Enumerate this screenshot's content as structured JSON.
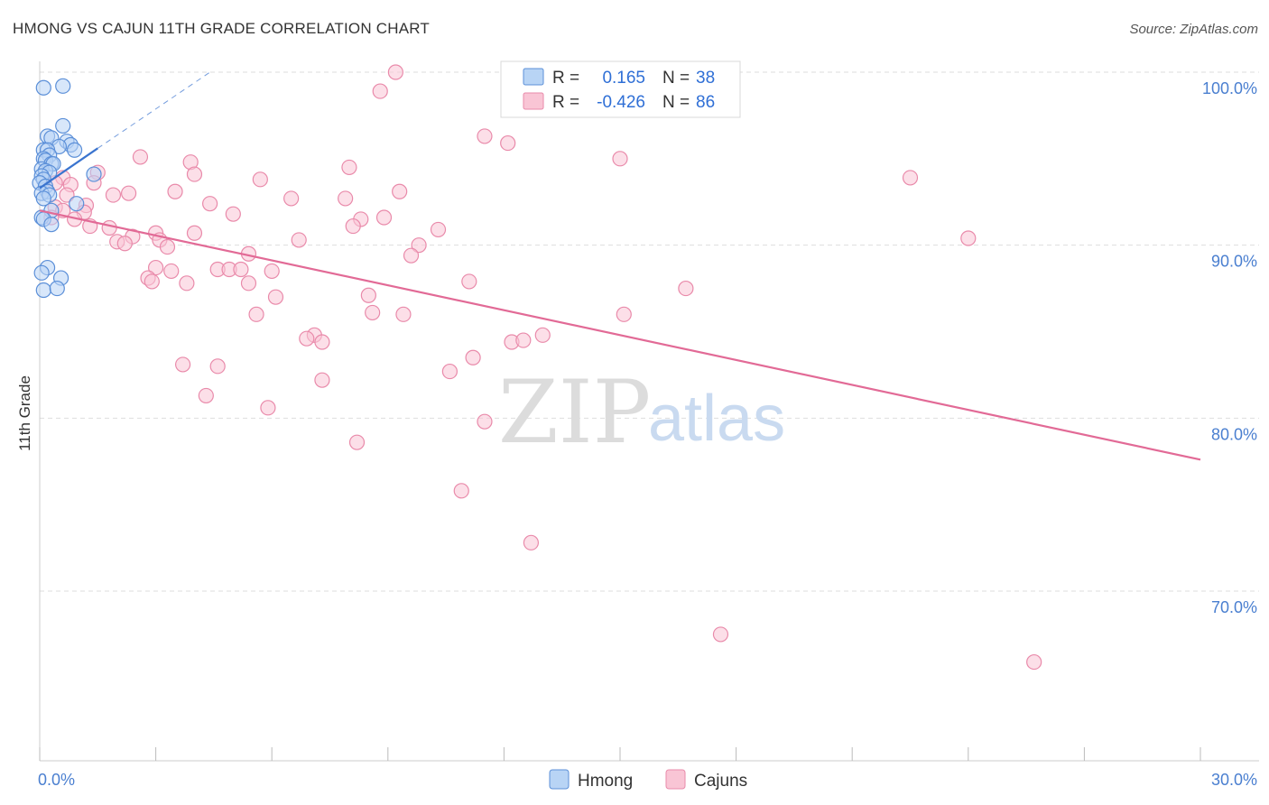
{
  "title": "HMONG VS CAJUN 11TH GRADE CORRELATION CHART",
  "source": "Source: ZipAtlas.com",
  "watermark": {
    "part1": "ZIP",
    "part2": "atlas"
  },
  "colors": {
    "hmong_fill": "#b8d4f5",
    "hmong_stroke": "#5b8fd8",
    "hmong_line": "#3a74cf",
    "cajun_fill": "#f9c5d5",
    "cajun_stroke": "#e98aaa",
    "cajun_line": "#e26a96",
    "tick_label": "#4a7fd0",
    "grid": "#dddddd"
  },
  "legend_box": {
    "rows": [
      {
        "r_label": "R =",
        "r_value": "0.165",
        "n_label": "N =",
        "n_value": "38",
        "series": "hmong"
      },
      {
        "r_label": "R =",
        "r_value": "-0.426",
        "n_label": "N =",
        "n_value": "86",
        "series": "cajun"
      }
    ]
  },
  "chart_data": {
    "type": "scatter",
    "title": "HMONG VS CAJUN 11TH GRADE CORRELATION CHART",
    "xlabel": "",
    "ylabel": "11th Grade",
    "xlim": [
      0.0,
      30.0
    ],
    "ylim": [
      60.5,
      101.0
    ],
    "x_tick_labels": [
      {
        "value": 0.0,
        "label": "0.0%"
      },
      {
        "value": 30.0,
        "label": "30.0%"
      }
    ],
    "x_minor_ticks": [
      3,
      6,
      9,
      12,
      15,
      18,
      21,
      24,
      27
    ],
    "y_ticks": [
      {
        "value": 100.0,
        "label": "100.0%"
      },
      {
        "value": 90.0,
        "label": "90.0%"
      },
      {
        "value": 80.0,
        "label": "80.0%"
      },
      {
        "value": 70.0,
        "label": "70.0%"
      }
    ],
    "grid": true,
    "legend_position": "bottom-center",
    "series": [
      {
        "name": "Hmong",
        "key": "hmong",
        "r": 0.165,
        "n": 38,
        "trend": {
          "x0": 0.0,
          "y0": 93.3,
          "x1": 1.5,
          "y1": 95.6,
          "dashed_to_x": 4.4,
          "dashed_to_y": 100.0
        },
        "points": [
          [
            0.1,
            99.1
          ],
          [
            0.6,
            99.2
          ],
          [
            0.6,
            96.9
          ],
          [
            0.2,
            96.3
          ],
          [
            0.3,
            96.2
          ],
          [
            0.7,
            96.0
          ],
          [
            0.8,
            95.8
          ],
          [
            0.5,
            95.7
          ],
          [
            0.1,
            95.5
          ],
          [
            0.2,
            95.5
          ],
          [
            0.9,
            95.5
          ],
          [
            0.25,
            95.2
          ],
          [
            0.1,
            95.0
          ],
          [
            0.15,
            94.9
          ],
          [
            0.3,
            94.7
          ],
          [
            0.35,
            94.7
          ],
          [
            0.05,
            94.4
          ],
          [
            0.15,
            94.3
          ],
          [
            0.25,
            94.2
          ],
          [
            0.05,
            94.0
          ],
          [
            1.4,
            94.1
          ],
          [
            0.1,
            93.8
          ],
          [
            0.0,
            93.6
          ],
          [
            0.15,
            93.4
          ],
          [
            0.2,
            93.1
          ],
          [
            0.05,
            93.0
          ],
          [
            0.25,
            92.9
          ],
          [
            0.1,
            92.7
          ],
          [
            0.95,
            92.4
          ],
          [
            0.3,
            92.0
          ],
          [
            0.05,
            91.6
          ],
          [
            0.1,
            91.5
          ],
          [
            0.3,
            91.2
          ],
          [
            0.2,
            88.7
          ],
          [
            0.05,
            88.4
          ],
          [
            0.55,
            88.1
          ],
          [
            0.1,
            87.4
          ],
          [
            0.45,
            87.5
          ]
        ]
      },
      {
        "name": "Cajuns",
        "key": "cajun",
        "r": -0.426,
        "n": 86,
        "trend": {
          "x0": 0.0,
          "y0": 92.0,
          "x1": 30.0,
          "y1": 77.6
        },
        "points": [
          [
            9.2,
            100.0
          ],
          [
            8.8,
            98.9
          ],
          [
            11.5,
            96.3
          ],
          [
            12.1,
            95.9
          ],
          [
            2.6,
            95.1
          ],
          [
            15.0,
            95.0
          ],
          [
            3.9,
            94.8
          ],
          [
            8.0,
            94.5
          ],
          [
            1.5,
            94.2
          ],
          [
            4.0,
            94.1
          ],
          [
            22.5,
            93.9
          ],
          [
            0.6,
            93.9
          ],
          [
            5.7,
            93.8
          ],
          [
            0.8,
            93.5
          ],
          [
            1.4,
            93.6
          ],
          [
            0.4,
            93.6
          ],
          [
            3.5,
            93.1
          ],
          [
            9.3,
            93.1
          ],
          [
            2.3,
            93.0
          ],
          [
            1.9,
            92.9
          ],
          [
            0.7,
            92.9
          ],
          [
            6.5,
            92.7
          ],
          [
            7.9,
            92.7
          ],
          [
            4.4,
            92.4
          ],
          [
            1.2,
            92.3
          ],
          [
            0.4,
            92.2
          ],
          [
            0.6,
            92.0
          ],
          [
            1.15,
            91.9
          ],
          [
            5.0,
            91.8
          ],
          [
            8.3,
            91.5
          ],
          [
            8.9,
            91.6
          ],
          [
            8.1,
            91.1
          ],
          [
            1.3,
            91.1
          ],
          [
            1.8,
            91.0
          ],
          [
            10.3,
            90.9
          ],
          [
            3.0,
            90.7
          ],
          [
            4.0,
            90.7
          ],
          [
            2.4,
            90.5
          ],
          [
            24.0,
            90.4
          ],
          [
            3.1,
            90.3
          ],
          [
            6.7,
            90.3
          ],
          [
            2.0,
            90.2
          ],
          [
            2.2,
            90.1
          ],
          [
            9.8,
            90.0
          ],
          [
            3.3,
            89.9
          ],
          [
            5.4,
            89.5
          ],
          [
            9.6,
            89.4
          ],
          [
            3.0,
            88.7
          ],
          [
            4.6,
            88.6
          ],
          [
            4.9,
            88.6
          ],
          [
            5.2,
            88.6
          ],
          [
            6.0,
            88.5
          ],
          [
            3.4,
            88.5
          ],
          [
            2.8,
            88.1
          ],
          [
            2.9,
            87.9
          ],
          [
            11.1,
            87.9
          ],
          [
            3.8,
            87.8
          ],
          [
            5.4,
            87.8
          ],
          [
            16.7,
            87.5
          ],
          [
            8.5,
            87.1
          ],
          [
            6.1,
            87.0
          ],
          [
            5.6,
            86.0
          ],
          [
            8.6,
            86.1
          ],
          [
            9.4,
            86.0
          ],
          [
            15.1,
            86.0
          ],
          [
            7.1,
            84.8
          ],
          [
            6.9,
            84.6
          ],
          [
            13.0,
            84.8
          ],
          [
            12.2,
            84.4
          ],
          [
            12.5,
            84.5
          ],
          [
            7.3,
            84.4
          ],
          [
            11.2,
            83.5
          ],
          [
            3.7,
            83.1
          ],
          [
            4.6,
            83.0
          ],
          [
            10.6,
            82.7
          ],
          [
            7.3,
            82.2
          ],
          [
            4.3,
            81.3
          ],
          [
            5.9,
            80.6
          ],
          [
            11.5,
            79.8
          ],
          [
            8.2,
            78.6
          ],
          [
            10.9,
            75.8
          ],
          [
            12.7,
            72.8
          ],
          [
            17.6,
            67.5
          ],
          [
            25.7,
            65.9
          ],
          [
            0.3,
            91.6
          ],
          [
            0.9,
            91.5
          ]
        ]
      }
    ]
  },
  "bottom_legend": [
    {
      "label": "Hmong",
      "series": "hmong"
    },
    {
      "label": "Cajuns",
      "series": "cajun"
    }
  ]
}
